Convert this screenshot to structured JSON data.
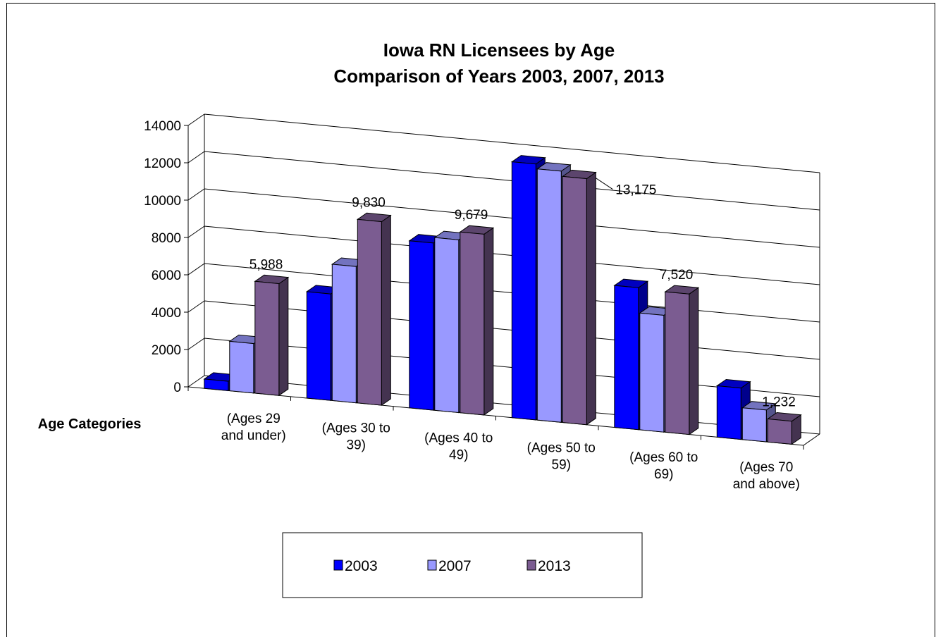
{
  "chart_data": {
    "type": "bar",
    "title": "Iowa RN Licensees by Age",
    "subtitle": "Comparison of Years 2003, 2007, 2013",
    "xlabel": "Age Categories",
    "ylabel": "",
    "ylim": [
      0,
      14000
    ],
    "yticks": [
      "0",
      "2000",
      "4000",
      "6000",
      "8000",
      "10000",
      "12000",
      "14000"
    ],
    "grid": true,
    "legend": "bottom",
    "categories": [
      "(Ages 29 and under)",
      "(Ages 30 to 39)",
      "(Ages 40 to 49)",
      "(Ages 50 to 59)",
      "(Ages 60 to 69)",
      "(Ages 70 and above)"
    ],
    "category_lines": [
      [
        "(Ages 29",
        "and under)"
      ],
      [
        "(Ages 30 to",
        "39)"
      ],
      [
        "(Ages 40 to",
        "49)"
      ],
      [
        "(Ages 50 to",
        "59)"
      ],
      [
        "(Ages 60 to",
        "69)"
      ],
      [
        "(Ages 70",
        "and above)"
      ]
    ],
    "series": [
      {
        "name": "2003",
        "color": "#0000ff",
        "values": [
          500,
          5700,
          8950,
          13700,
          7600,
          2750
        ]
      },
      {
        "name": "2007",
        "color": "#9999ff",
        "values": [
          2650,
          7300,
          9250,
          13450,
          6250,
          1700
        ]
      },
      {
        "name": "2013",
        "color": "#7b5c91",
        "values": [
          5988,
          9830,
          9679,
          13175,
          7520,
          1232
        ]
      }
    ],
    "data_labels": [
      {
        "category": 0,
        "series": 2,
        "text": "5,988"
      },
      {
        "category": 1,
        "series": 2,
        "text": "9,830"
      },
      {
        "category": 2,
        "series": 2,
        "text": "9,679"
      },
      {
        "category": 3,
        "series": 2,
        "text": "13,175"
      },
      {
        "category": 4,
        "series": 2,
        "text": "7,520"
      },
      {
        "category": 5,
        "series": 2,
        "text": "1,232"
      }
    ]
  }
}
